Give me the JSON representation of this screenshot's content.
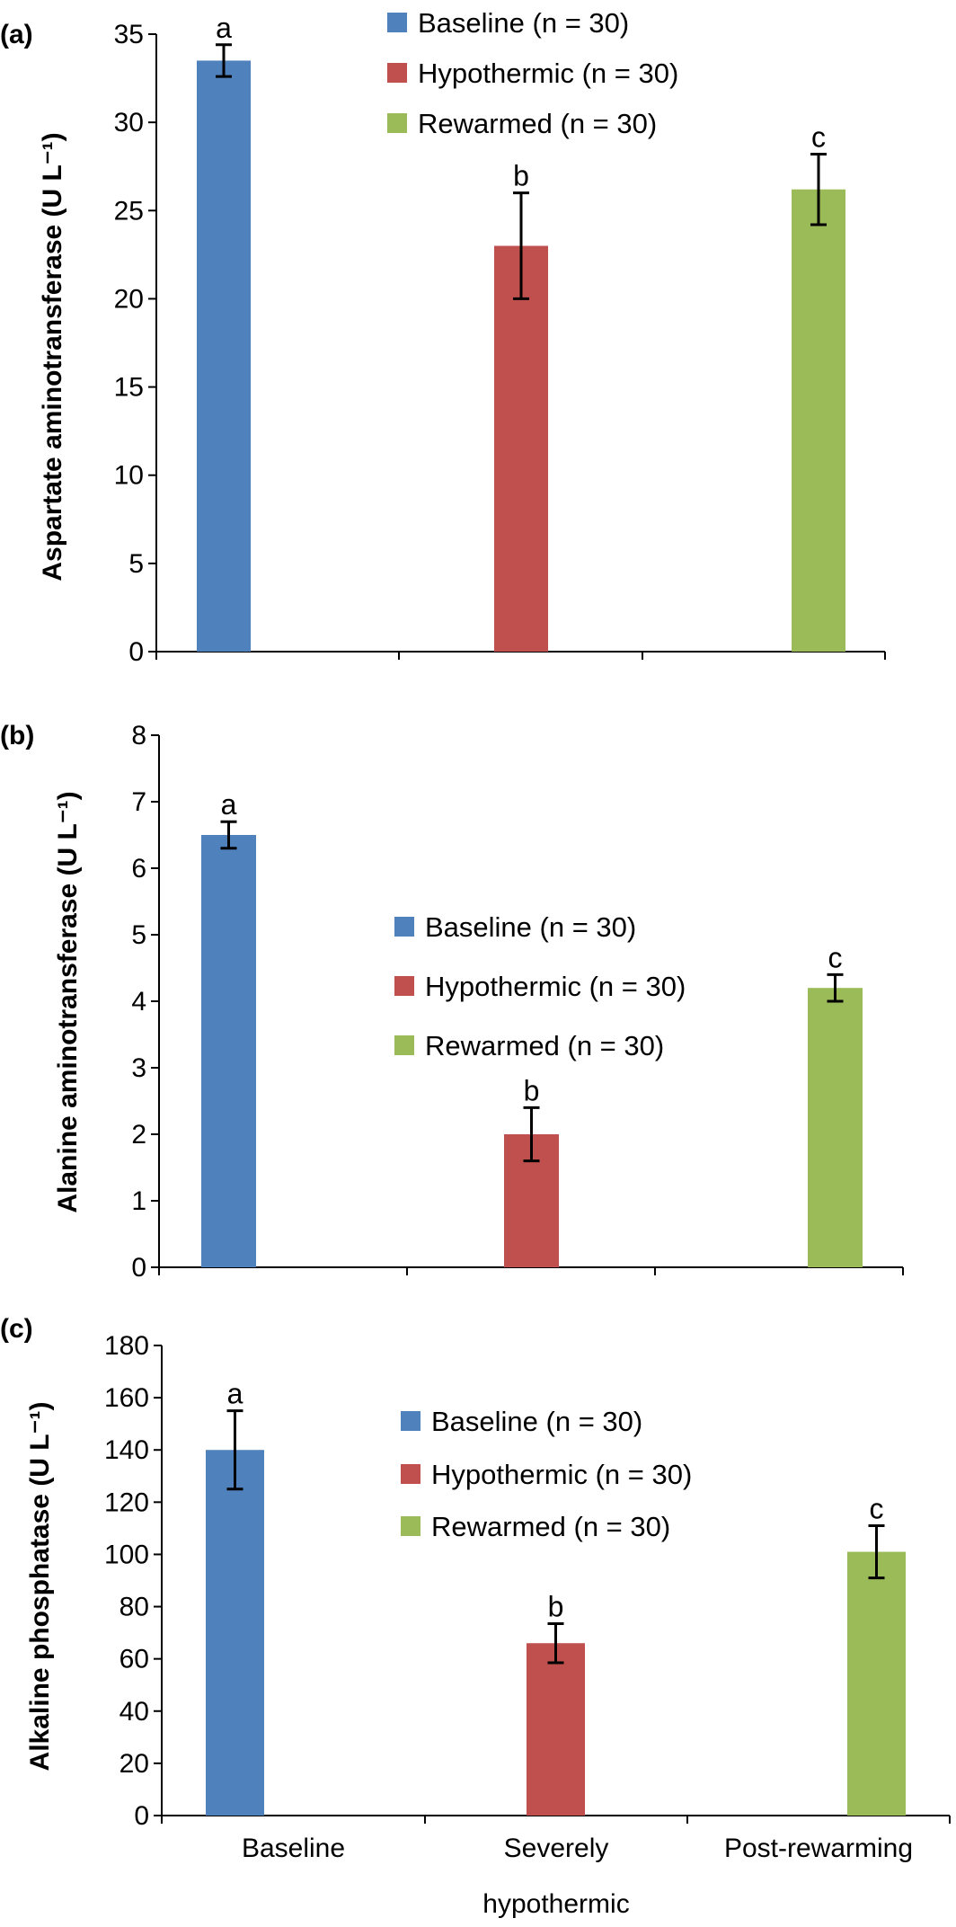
{
  "colors": {
    "Baseline": "#4f81bd",
    "Hypothermic": "#c0504d",
    "Rewarmed": "#9bbb59"
  },
  "chart_data": [
    {
      "type": "bar",
      "panel_label": "(a)",
      "ylabel": "Aspartate aminotransferase (U L⁻¹)",
      "ylim": [
        0,
        35
      ],
      "ytick_step": 5,
      "yticks": [
        "0",
        "5",
        "10",
        "15",
        "20",
        "25",
        "30",
        "35"
      ],
      "legend": [
        "Baseline (n = 30)",
        "Hypothermic (n = 30)",
        "Rewarmed (n = 30)"
      ],
      "legend_placement": "top-center",
      "series": [
        {
          "name": "Baseline (n = 30)",
          "value": 33.5,
          "error": 0.9,
          "letter": "a"
        },
        {
          "name": "Hypothermic (n = 30)",
          "value": 23.0,
          "error": 3.0,
          "letter": "b"
        },
        {
          "name": "Rewarmed (n = 30)",
          "value": 26.2,
          "error": 2.0,
          "letter": "c"
        }
      ]
    },
    {
      "type": "bar",
      "panel_label": "(b)",
      "ylabel": "Alanine aminotransferase (U L⁻¹)",
      "ylim": [
        0,
        8
      ],
      "ytick_step": 1,
      "yticks": [
        "0",
        "1",
        "2",
        "3",
        "4",
        "5",
        "6",
        "7",
        "8"
      ],
      "legend": [
        "Baseline (n = 30)",
        "Hypothermic (n = 30)",
        "Rewarmed (n = 30)"
      ],
      "legend_placement": "center",
      "series": [
        {
          "name": "Baseline (n = 30)",
          "value": 6.5,
          "error": 0.2,
          "letter": "a"
        },
        {
          "name": "Hypothermic (n = 30)",
          "value": 2.0,
          "error": 0.4,
          "letter": "b"
        },
        {
          "name": "Rewarmed (n = 30)",
          "value": 4.2,
          "error": 0.2,
          "letter": "c"
        }
      ]
    },
    {
      "type": "bar",
      "panel_label": "(c)",
      "ylabel": "Alkaline phosphatase (U L⁻¹)",
      "ylim": [
        0,
        180
      ],
      "ytick_step": 20,
      "yticks": [
        "0",
        "20",
        "40",
        "60",
        "80",
        "100",
        "120",
        "140",
        "160",
        "180"
      ],
      "legend": [
        "Baseline (n = 30)",
        "Hypothermic (n = 30)",
        "Rewarmed (n = 30)"
      ],
      "legend_placement": "top-center",
      "categories": [
        "Baseline",
        "Severely",
        "Post-rewarming"
      ],
      "category_second_line": "hypothermic",
      "series": [
        {
          "name": "Baseline (n = 30)",
          "value": 140,
          "error": 15,
          "letter": "a"
        },
        {
          "name": "Hypothermic (n = 30)",
          "value": 66,
          "error": 7.5,
          "letter": "b"
        },
        {
          "name": "Rewarmed (n = 30)",
          "value": 101,
          "error": 10,
          "letter": "c"
        }
      ]
    }
  ]
}
